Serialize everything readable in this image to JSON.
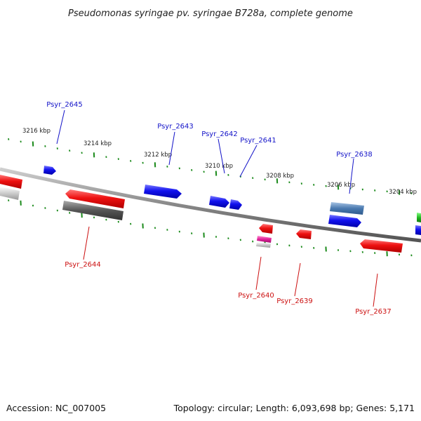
{
  "title": "Pseudomonas syringae pv. syringae B728a, complete genome",
  "footer": {
    "accession": "Accession: NC_007005",
    "summary": "Topology: circular; Length: 6,093,698 bp; Genes: 5,171"
  },
  "scale_labels": [
    "3216 kbp",
    "3214 kbp",
    "3212 kbp",
    "3210 kbp",
    "3208 kbp",
    "3206 kbp",
    "3204 kbp"
  ],
  "forward_labels": [
    "Psyr_2645",
    "Psyr_2643",
    "Psyr_2642",
    "Psyr_2641",
    "Psyr_2638"
  ],
  "reverse_labels": [
    "Psyr_2644",
    "Psyr_2640",
    "Psyr_2639",
    "Psyr_2637"
  ],
  "colors": {
    "forward": "#1010e0",
    "reverse": "#e01010",
    "backbone": "#8a8a8a",
    "ticks": "#1a8a1a",
    "gray_feature": "#666666",
    "steel_feature": "#4a7ab0",
    "pink_feature": "#e0209a",
    "green_feature": "#22bb22"
  }
}
